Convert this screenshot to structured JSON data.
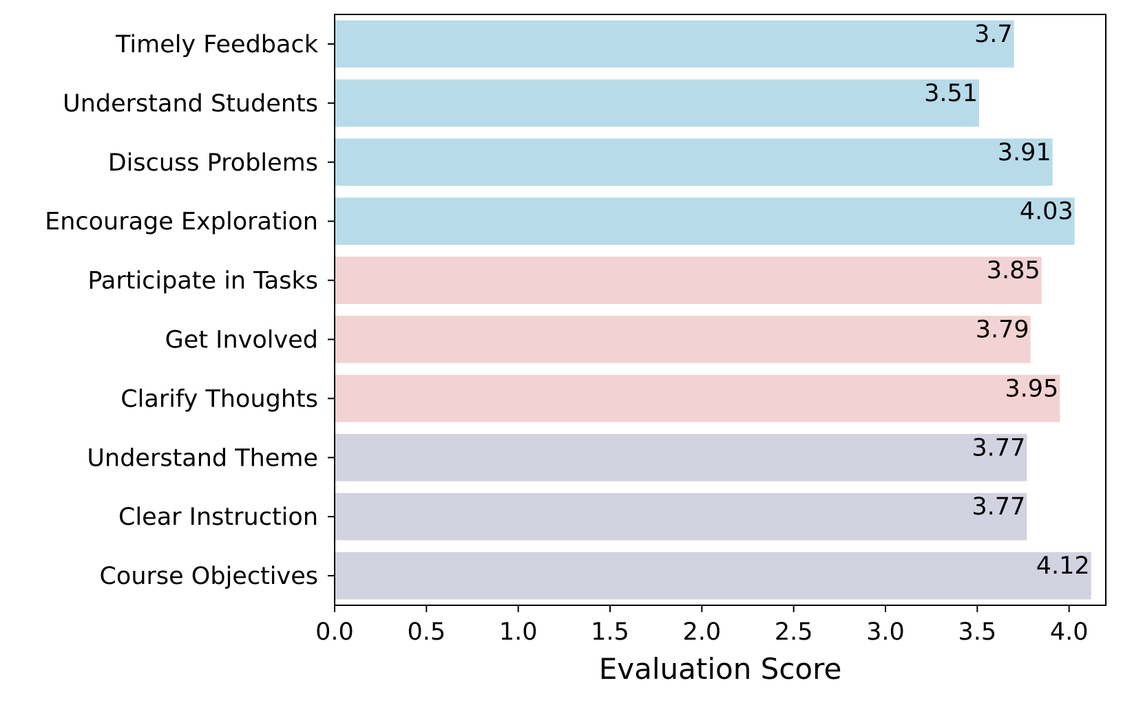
{
  "chart_data": {
    "type": "bar",
    "orientation": "horizontal",
    "xlabel": "Evaluation Score",
    "ylabel": "",
    "xlim": [
      0,
      4.2
    ],
    "grid": false,
    "categories": [
      "Timely Feedback",
      "Understand Students",
      "Discuss Problems",
      "Encourage Exploration",
      "Participate in Tasks",
      "Get Involved",
      "Clarify Thoughts",
      "Understand Theme",
      "Clear Instruction",
      "Course Objectives"
    ],
    "values": [
      3.7,
      3.51,
      3.91,
      4.03,
      3.85,
      3.79,
      3.95,
      3.77,
      3.77,
      4.12
    ],
    "value_labels": [
      "3.7",
      "3.51",
      "3.91",
      "4.03",
      "3.85",
      "3.79",
      "3.95",
      "3.77",
      "3.77",
      "4.12"
    ],
    "bar_colors": [
      "#b8dbea",
      "#b8dbea",
      "#b8dbea",
      "#b8dbea",
      "#f2d2d2",
      "#f2d2d2",
      "#f2d2d2",
      "#d2d2e0",
      "#d2d2e0",
      "#d2d2e0"
    ],
    "xticks": [
      0.0,
      0.5,
      1.0,
      1.5,
      2.0,
      2.5,
      3.0,
      3.5,
      4.0
    ],
    "xtick_labels": [
      "0.0",
      "0.5",
      "1.0",
      "1.5",
      "2.0",
      "2.5",
      "3.0",
      "3.5",
      "4.0"
    ]
  }
}
